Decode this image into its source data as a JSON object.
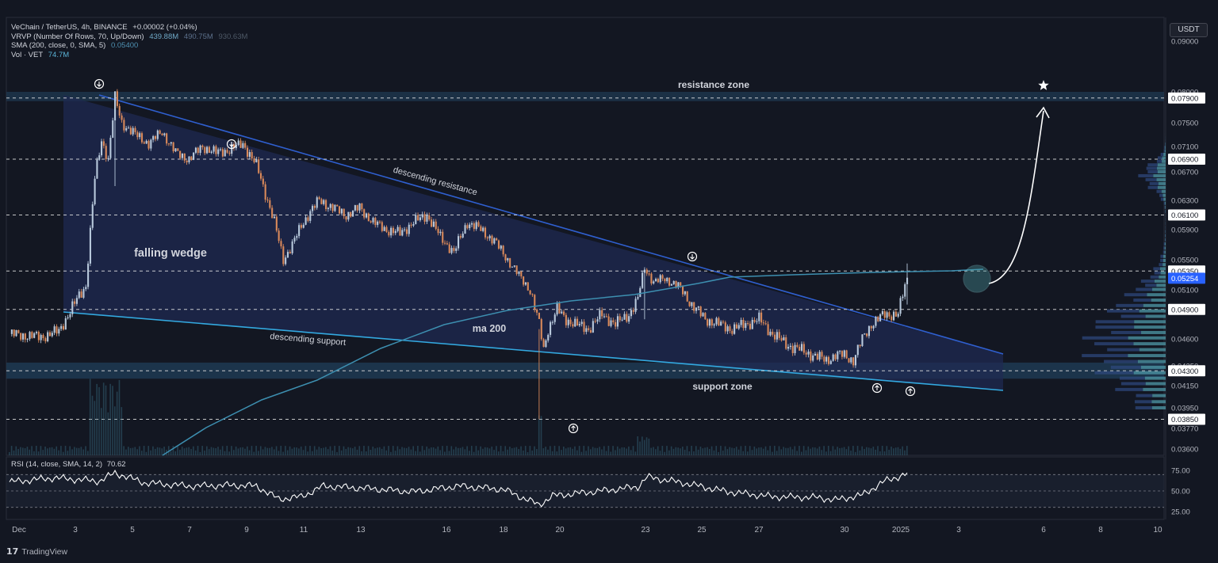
{
  "legend": {
    "symbol": "VeChain / TetherUS, 4h, BINANCE",
    "change": "+0.00002 (+0.04%)",
    "vrvp_label": "VRVP (Number Of Rows, 70, Up/Down)",
    "vrvp_v1": "439.88M",
    "vrvp_v2": "490.75M",
    "vrvp_v3": "930.63M",
    "sma_label": "SMA (200, close, 0, SMA, 5)",
    "sma_value": "0.05400",
    "vol_label": "Vol · VET",
    "vol_value": "74.7M"
  },
  "currency": "USDT",
  "rsi": {
    "label": "RSI (14, close, SMA, 14, 2)",
    "value": "70.62"
  },
  "branding": "TradingView",
  "colors": {
    "background": "#131722",
    "up": "#b8c9dc",
    "down": "#d9895a",
    "wedge_fill": "#1f2a52",
    "wedge_line": "#2f5fcf",
    "support_line": "#33a9e0",
    "ma_line": "#3d8fb0",
    "zone_fill": "#1f3a52"
  },
  "chart_data": {
    "type": "candlestick",
    "timeframe": "4h",
    "price_axis": {
      "ticks": [
        "0.09000",
        "0.08000",
        "0.07500",
        "0.07100",
        "0.06700",
        "0.06300",
        "0.05900",
        "0.05500",
        "0.05100",
        "0.04600",
        "0.04350",
        "0.04150",
        "0.03950",
        "0.03770",
        "0.03600"
      ],
      "ylim": [
        0.0355,
        0.0915
      ],
      "highlighted_levels": [
        "0.07900",
        "0.06900",
        "0.06100",
        "0.05350",
        "0.04900",
        "0.04300",
        "0.03850"
      ],
      "current_price": "0.05254"
    },
    "time_axis": {
      "labels": [
        "Dec",
        "3",
        "5",
        "7",
        "9",
        "11",
        "13",
        "16",
        "18",
        "20",
        "23",
        "25",
        "27",
        "30",
        "2025",
        "3",
        "6",
        "8",
        "10"
      ]
    },
    "rsi_axis": {
      "ticks": [
        "75.00",
        "50.00",
        "25.00"
      ]
    },
    "annotations": {
      "resistance_zone": "resistance zone",
      "support_zone": "support zone",
      "falling_wedge": "falling wedge",
      "descending_resistance": "descending resistance",
      "descending_support": "descending support",
      "ma200": "ma 200"
    },
    "close_path": [
      [
        0,
        0.0465
      ],
      [
        14,
        0.0462
      ],
      [
        22,
        0.0468
      ],
      [
        30,
        0.05
      ],
      [
        34,
        0.0515
      ],
      [
        38,
        0.066
      ],
      [
        41,
        0.072
      ],
      [
        44,
        0.069
      ],
      [
        47,
        0.079
      ],
      [
        50,
        0.075
      ],
      [
        56,
        0.073
      ],
      [
        62,
        0.0715
      ],
      [
        68,
        0.0735
      ],
      [
        74,
        0.07
      ],
      [
        80,
        0.069
      ],
      [
        86,
        0.071
      ],
      [
        92,
        0.07
      ],
      [
        98,
        0.0705
      ],
      [
        104,
        0.0715
      ],
      [
        110,
        0.068
      ],
      [
        114,
        0.064
      ],
      [
        118,
        0.06
      ],
      [
        122,
        0.055
      ],
      [
        126,
        0.057
      ],
      [
        130,
        0.0595
      ],
      [
        134,
        0.0615
      ],
      [
        138,
        0.063
      ],
      [
        144,
        0.062
      ],
      [
        150,
        0.061
      ],
      [
        156,
        0.062
      ],
      [
        162,
        0.06
      ],
      [
        168,
        0.059
      ],
      [
        174,
        0.0585
      ],
      [
        180,
        0.06
      ],
      [
        186,
        0.061
      ],
      [
        192,
        0.058
      ],
      [
        198,
        0.056
      ],
      [
        204,
        0.06
      ],
      [
        210,
        0.059
      ],
      [
        216,
        0.0575
      ],
      [
        222,
        0.055
      ],
      [
        228,
        0.0525
      ],
      [
        232,
        0.051
      ],
      [
        236,
        0.0475
      ],
      [
        238,
        0.045
      ],
      [
        240,
        0.047
      ],
      [
        244,
        0.049
      ],
      [
        248,
        0.048
      ],
      [
        252,
        0.0475
      ],
      [
        258,
        0.047
      ],
      [
        264,
        0.0485
      ],
      [
        270,
        0.0475
      ],
      [
        276,
        0.0485
      ],
      [
        280,
        0.05
      ],
      [
        283,
        0.054
      ],
      [
        287,
        0.052
      ],
      [
        292,
        0.0525
      ],
      [
        298,
        0.0515
      ],
      [
        304,
        0.0495
      ],
      [
        310,
        0.048
      ],
      [
        316,
        0.0475
      ],
      [
        322,
        0.047
      ],
      [
        328,
        0.0475
      ],
      [
        334,
        0.048
      ],
      [
        340,
        0.0465
      ],
      [
        346,
        0.0455
      ],
      [
        352,
        0.045
      ],
      [
        358,
        0.0445
      ],
      [
        364,
        0.044
      ],
      [
        368,
        0.0445
      ],
      [
        372,
        0.0445
      ],
      [
        376,
        0.044
      ],
      [
        380,
        0.046
      ],
      [
        384,
        0.0475
      ],
      [
        390,
        0.0485
      ],
      [
        396,
        0.0485
      ],
      [
        400,
        0.0525
      ]
    ],
    "wicks": [
      {
        "bar": 47,
        "high": 0.08,
        "low": 0.065
      },
      {
        "bar": 236,
        "high": 0.047,
        "low": 0.0385
      },
      {
        "bar": 283,
        "high": 0.054,
        "low": 0.048
      },
      {
        "bar": 400,
        "high": 0.0545,
        "low": 0.0495
      }
    ],
    "levels": {
      "resistance_zone": [
        0.0785,
        0.08
      ],
      "support_zone": [
        0.0422,
        0.0438
      ],
      "dashed": [
        0.079,
        0.069,
        0.061,
        0.0535,
        0.049,
        0.043,
        0.0385
      ]
    },
    "rsi_path": [
      [
        0,
        61
      ],
      [
        20,
        66
      ],
      [
        40,
        62
      ],
      [
        47,
        72
      ],
      [
        60,
        60
      ],
      [
        80,
        56
      ],
      [
        100,
        57
      ],
      [
        110,
        56
      ],
      [
        120,
        40
      ],
      [
        130,
        43
      ],
      [
        140,
        56
      ],
      [
        160,
        53
      ],
      [
        180,
        49
      ],
      [
        200,
        56
      ],
      [
        220,
        52
      ],
      [
        236,
        33
      ],
      [
        242,
        44
      ],
      [
        260,
        49
      ],
      [
        280,
        55
      ],
      [
        284,
        67
      ],
      [
        300,
        60
      ],
      [
        320,
        49
      ],
      [
        340,
        43
      ],
      [
        360,
        42
      ],
      [
        368,
        39
      ],
      [
        380,
        45
      ],
      [
        390,
        62
      ],
      [
        400,
        71
      ]
    ]
  }
}
